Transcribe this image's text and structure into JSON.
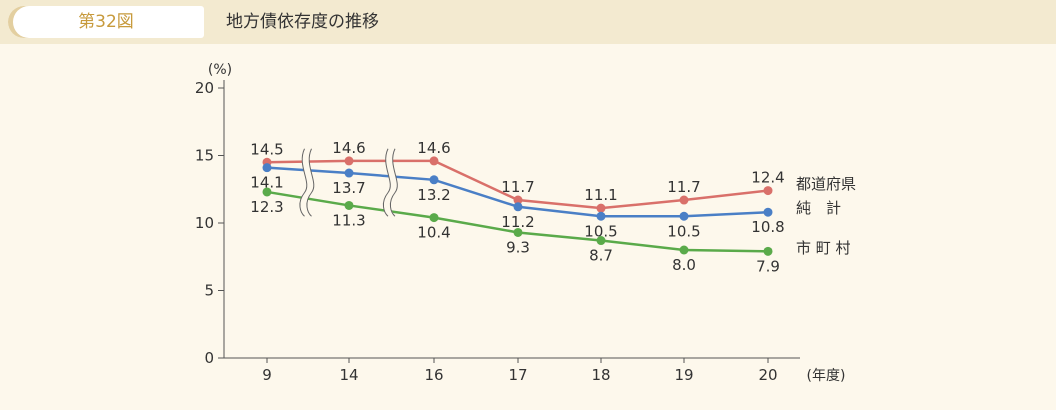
{
  "header": {
    "figure_number": "第32図",
    "title": "地方債依存度の推移"
  },
  "chart_data": {
    "type": "line",
    "title": "地方債依存度の推移",
    "ylabel": "(%)",
    "xlabel": "(年度)",
    "categories": [
      "9",
      "14",
      "16",
      "17",
      "18",
      "19",
      "20"
    ],
    "ylim": [
      0,
      20
    ],
    "yticks": [
      0,
      5,
      10,
      15,
      20
    ],
    "grid": false,
    "axis_breaks_between": [
      [
        "9",
        "14"
      ],
      [
        "14",
        "16"
      ]
    ],
    "legend_position": "right, next to line ends",
    "series": [
      {
        "name": "都道府県",
        "color": "#d9706a",
        "values": [
          14.5,
          14.6,
          14.6,
          11.7,
          11.1,
          11.7,
          12.4
        ],
        "labels": [
          "14.5",
          "14.6",
          "14.6",
          "11.7",
          "11.1",
          "11.7",
          "12.4"
        ],
        "label_side": "above"
      },
      {
        "name": "純　計",
        "color": "#4a7fc6",
        "values": [
          14.1,
          13.7,
          13.2,
          11.2,
          10.5,
          10.5,
          10.8
        ],
        "labels": [
          "14.1",
          "13.7",
          "13.2",
          "11.2",
          "10.5",
          "10.5",
          "10.8"
        ],
        "label_side": "below"
      },
      {
        "name": "市 町 村",
        "color": "#5aaa4a",
        "values": [
          12.3,
          11.3,
          10.4,
          9.3,
          8.7,
          8.0,
          7.9
        ],
        "labels": [
          "12.3",
          "11.3",
          "10.4",
          "9.3",
          "8.7",
          "8.0",
          "7.9"
        ],
        "label_side": "below"
      }
    ]
  }
}
